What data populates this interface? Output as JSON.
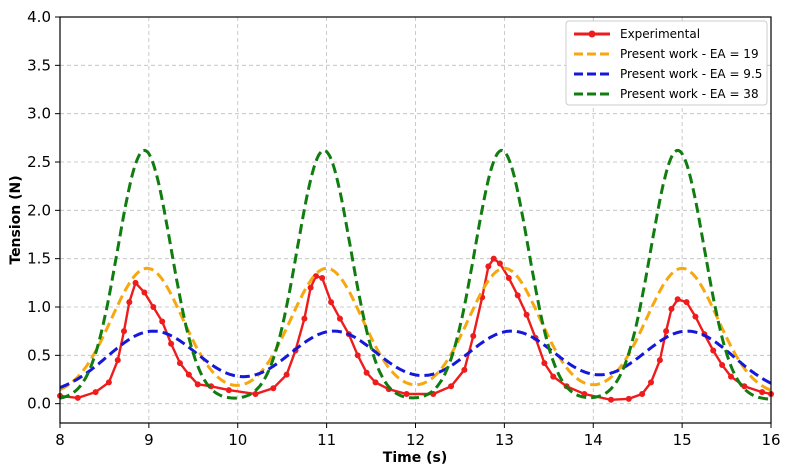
{
  "chart_data": {
    "type": "line",
    "title": "",
    "xlabel": "Time (s)",
    "ylabel": "Tension (N)",
    "xlim": [
      8,
      16
    ],
    "ylim": [
      -0.2,
      4.0
    ],
    "x_ticks": [
      8,
      9,
      10,
      11,
      12,
      13,
      14,
      15,
      16
    ],
    "x_tick_labels": [
      "8",
      "9",
      "10",
      "11",
      "12",
      "13",
      "14",
      "15",
      "16"
    ],
    "y_ticks": [
      0.0,
      0.5,
      1.0,
      1.5,
      2.0,
      2.5,
      3.0,
      3.5,
      4.0
    ],
    "y_tick_labels": [
      "0.0",
      "0.5",
      "1.0",
      "1.5",
      "2.0",
      "2.5",
      "3.0",
      "3.5",
      "4.0"
    ],
    "grid": true,
    "legend_position": "top-right",
    "series": [
      {
        "name": "Experimental",
        "color": "#ee1c1c",
        "style": "solid-markers",
        "x": [
          8.0,
          8.2,
          8.4,
          8.55,
          8.65,
          8.72,
          8.78,
          8.85,
          8.95,
          9.05,
          9.15,
          9.25,
          9.35,
          9.45,
          9.55,
          9.7,
          9.9,
          10.2,
          10.4,
          10.55,
          10.65,
          10.75,
          10.82,
          10.88,
          10.95,
          11.05,
          11.15,
          11.25,
          11.35,
          11.45,
          11.55,
          11.7,
          11.9,
          12.2,
          12.4,
          12.55,
          12.65,
          12.75,
          12.82,
          12.88,
          12.95,
          13.05,
          13.15,
          13.25,
          13.35,
          13.45,
          13.55,
          13.7,
          13.9,
          14.2,
          14.4,
          14.55,
          14.65,
          14.75,
          14.82,
          14.88,
          14.95,
          15.05,
          15.15,
          15.25,
          15.35,
          15.45,
          15.55,
          15.7,
          15.9,
          16.0
        ],
        "y": [
          0.08,
          0.06,
          0.12,
          0.22,
          0.45,
          0.75,
          1.05,
          1.25,
          1.15,
          1.0,
          0.85,
          0.62,
          0.42,
          0.3,
          0.2,
          0.18,
          0.14,
          0.1,
          0.16,
          0.3,
          0.55,
          0.88,
          1.2,
          1.32,
          1.3,
          1.05,
          0.88,
          0.72,
          0.5,
          0.32,
          0.22,
          0.15,
          0.1,
          0.1,
          0.18,
          0.35,
          0.7,
          1.1,
          1.42,
          1.5,
          1.45,
          1.3,
          1.12,
          0.92,
          0.68,
          0.42,
          0.28,
          0.18,
          0.1,
          0.04,
          0.05,
          0.1,
          0.22,
          0.45,
          0.75,
          0.98,
          1.08,
          1.05,
          0.9,
          0.72,
          0.55,
          0.4,
          0.28,
          0.18,
          0.12,
          0.1
        ]
      },
      {
        "name": "Present work - EA = 19",
        "color": "#f6a80e",
        "style": "dashed",
        "peak": 1.4,
        "trough": 0.08,
        "peak_times": [
          8.98,
          11.0,
          13.0,
          15.0
        ],
        "peak_width": 0.4
      },
      {
        "name": "Present work - EA = 9.5",
        "color": "#1518d8",
        "style": "dashed",
        "peak": 0.75,
        "trough": 0.08,
        "peak_times": [
          9.05,
          11.08,
          13.08,
          15.06
        ],
        "peak_width": 0.52
      },
      {
        "name": "Present work - EA = 38",
        "color": "#117d11",
        "style": "dashed",
        "peak": 2.62,
        "trough": 0.04,
        "peak_times": [
          8.95,
          10.97,
          12.97,
          14.95
        ],
        "peak_width": 0.3
      }
    ]
  }
}
